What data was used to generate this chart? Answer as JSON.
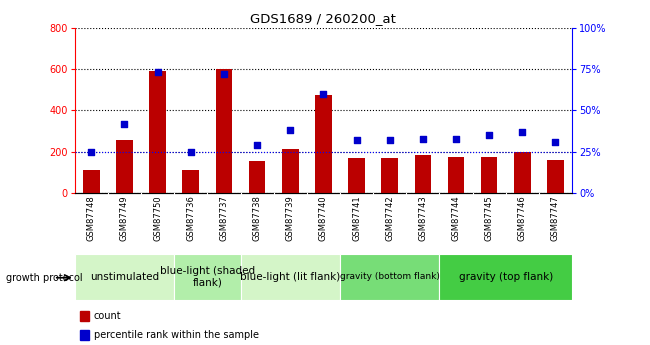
{
  "title": "GDS1689 / 260200_at",
  "samples": [
    "GSM87748",
    "GSM87749",
    "GSM87750",
    "GSM87736",
    "GSM87737",
    "GSM87738",
    "GSM87739",
    "GSM87740",
    "GSM87741",
    "GSM87742",
    "GSM87743",
    "GSM87744",
    "GSM87745",
    "GSM87746",
    "GSM87747"
  ],
  "counts": [
    113,
    258,
    590,
    113,
    600,
    155,
    215,
    475,
    170,
    170,
    183,
    175,
    175,
    200,
    160
  ],
  "percentiles": [
    25,
    42,
    73,
    25,
    72,
    29,
    38,
    60,
    32,
    32,
    33,
    33,
    35,
    37,
    31
  ],
  "groups": [
    {
      "label": "unstimulated",
      "start": 0,
      "end": 3,
      "color": "#d4f5c8",
      "fontsize": 7.5
    },
    {
      "label": "blue-light (shaded\nflank)",
      "start": 3,
      "end": 5,
      "color": "#b2eeaa",
      "fontsize": 7.5
    },
    {
      "label": "blue-light (lit flank)",
      "start": 5,
      "end": 8,
      "color": "#d4f5c8",
      "fontsize": 7.5
    },
    {
      "label": "gravity (bottom flank)",
      "start": 8,
      "end": 11,
      "color": "#77dd77",
      "fontsize": 6.5
    },
    {
      "label": "gravity (top flank)",
      "start": 11,
      "end": 15,
      "color": "#44cc44",
      "fontsize": 7.5
    }
  ],
  "ylim_left": [
    0,
    800
  ],
  "ylim_right": [
    0,
    100
  ],
  "yticks_left": [
    0,
    200,
    400,
    600,
    800
  ],
  "yticks_right": [
    0,
    25,
    50,
    75,
    100
  ],
  "bar_color": "#bb0000",
  "dot_color": "#0000cc",
  "bar_width": 0.5,
  "growth_protocol_label": "growth protocol",
  "legend_count_label": "count",
  "legend_percentile_label": "percentile rank within the sample",
  "bg_plot": "#ffffff",
  "bg_xticklabel": "#c8c8c8",
  "grid_color": "#000000",
  "percentile_line_color": "#0000ff"
}
